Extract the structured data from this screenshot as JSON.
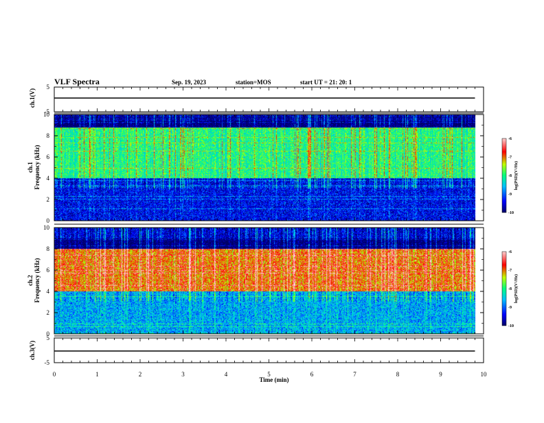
{
  "header": {
    "title": "VLF Spectra",
    "date": "Sep. 19, 2023",
    "station": "station=MOS",
    "start": "start  UT  =  21: 20: 1"
  },
  "colors": {
    "scale": [
      "#000066",
      "#0000ff",
      "#00c0ff",
      "#00ff80",
      "#c0ff00",
      "#ff0000",
      "#ffd0d0"
    ]
  },
  "chart_data": [
    {
      "type": "line",
      "panel": "ch1",
      "ylabel": "ch.1(V)",
      "ylim": [
        -5,
        5
      ],
      "yticks": [
        "5",
        "-5"
      ],
      "series": [
        {
          "values": [
            [
              0,
              0
            ],
            [
              9.8,
              0
            ]
          ]
        }
      ]
    },
    {
      "type": "heatmap",
      "panel": "spec1",
      "ylabel": "ch.1\nFrequency (kHz)",
      "ylim": [
        0,
        10
      ],
      "yticks": [
        "0",
        "2",
        "4",
        "6",
        "8",
        "10"
      ],
      "colorbar": {
        "label": "log(PSD)(V²/Hz)",
        "range": [
          -10,
          -6
        ],
        "ticks": [
          "-6",
          "-7",
          "-8",
          "-9",
          "-10"
        ]
      },
      "levels_by_band": [
        {
          "band": [
            8.8,
            10
          ],
          "level": -10
        },
        {
          "band": [
            4,
            8.8
          ],
          "level": -8
        },
        {
          "band": [
            0,
            4
          ],
          "level": -9.4
        }
      ]
    },
    {
      "type": "heatmap",
      "panel": "spec2",
      "ylabel": "ch.2\nFrequency (kHz)",
      "ylim": [
        0,
        10
      ],
      "yticks": [
        "0",
        "2",
        "4",
        "6",
        "8",
        "10"
      ],
      "colorbar": {
        "label": "log(PSD)(V²/Hz)",
        "range": [
          -10,
          -6
        ],
        "ticks": [
          "-6",
          "-7",
          "-8",
          "-9",
          "-10"
        ]
      },
      "levels_by_band": [
        {
          "band": [
            9,
            10
          ],
          "level": -9.5
        },
        {
          "band": [
            4,
            8
          ],
          "level": -6.9
        },
        {
          "band": [
            0,
            4
          ],
          "level": -8.7
        }
      ]
    },
    {
      "type": "line",
      "panel": "ch3",
      "ylabel": "ch.3(V)",
      "ylim": [
        -5,
        5
      ],
      "yticks": [
        "5",
        "-5"
      ],
      "series": [
        {
          "values": [
            [
              0,
              0
            ],
            [
              9.8,
              0
            ]
          ]
        }
      ]
    }
  ],
  "xaxis": {
    "label": "Time  (min)",
    "range": [
      0,
      10
    ],
    "ticks": [
      "0",
      "1",
      "2",
      "3",
      "4",
      "5",
      "6",
      "7",
      "8",
      "9",
      "10"
    ],
    "data_end": 9.8
  }
}
